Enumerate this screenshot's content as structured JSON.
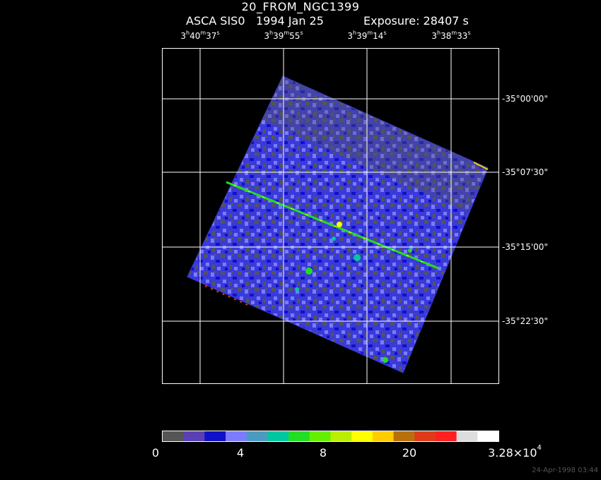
{
  "header": {
    "title": "20_FROM_NGC1399",
    "instrument": "ASCA SIS0",
    "date": "1994 Jan 25",
    "exposure": "Exposure: 28407 s"
  },
  "ra_labels": [
    {
      "h": "3",
      "m": "40",
      "s": "37"
    },
    {
      "h": "3",
      "m": "39",
      "s": "55"
    },
    {
      "h": "3",
      "m": "39",
      "s": "14"
    },
    {
      "h": "3",
      "m": "38",
      "s": "33"
    }
  ],
  "dec_labels": [
    "-35°00'00\"",
    "-35°07'30\"",
    "-35°15'00\"",
    "-35°22'30\""
  ],
  "colorbar": {
    "colors": [
      "#555555",
      "#5a3fb5",
      "#1010c8",
      "#7b7bff",
      "#4a9bbf",
      "#00c7a0",
      "#22dd22",
      "#66ee00",
      "#bbee00",
      "#ffff00",
      "#ffcc00",
      "#b8700c",
      "#e03a1a",
      "#ff2020",
      "#dddddd",
      "#ffffff"
    ],
    "labels": [
      "0",
      "4",
      "8",
      "20",
      "3.28×10"
    ],
    "exponent": "4"
  },
  "timestamp": "24-Apr-1998 03:44"
}
